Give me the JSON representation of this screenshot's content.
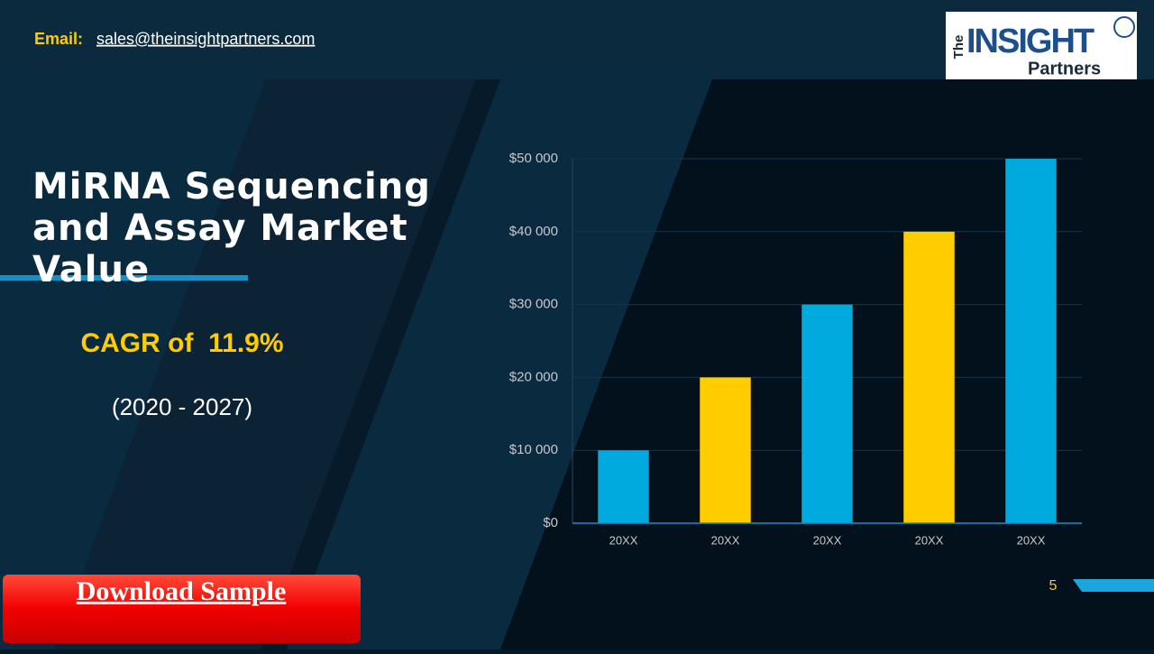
{
  "header": {
    "email_label": "Email:",
    "email": "sales@theinsightpartners.com",
    "logo": {
      "the": "The",
      "insight": "INSIGHT",
      "partners": "Partners"
    }
  },
  "title": "MiRNA Sequencing and Assay Market Value",
  "cagr": "CAGR of  11.9%",
  "period": "(2020 - 2027)",
  "download": "Download Sample",
  "page_number": "5",
  "chart_data": {
    "type": "bar",
    "categories": [
      "20XX",
      "20XX",
      "20XX",
      "20XX",
      "20XX"
    ],
    "values": [
      10000,
      20000,
      30000,
      40000,
      50000
    ],
    "colors": [
      "#00a9de",
      "#ffcc00",
      "#00a9de",
      "#ffcc00",
      "#00a9de"
    ],
    "ylim": [
      0,
      50000
    ],
    "yticks": [
      {
        "value": 0,
        "label": "$0"
      },
      {
        "value": 10000,
        "label": "$10 000"
      },
      {
        "value": 20000,
        "label": "$20 000"
      },
      {
        "value": 30000,
        "label": "$30 000"
      },
      {
        "value": 40000,
        "label": "$40 000"
      },
      {
        "value": 50000,
        "label": "$50 000"
      }
    ],
    "grid": true
  }
}
